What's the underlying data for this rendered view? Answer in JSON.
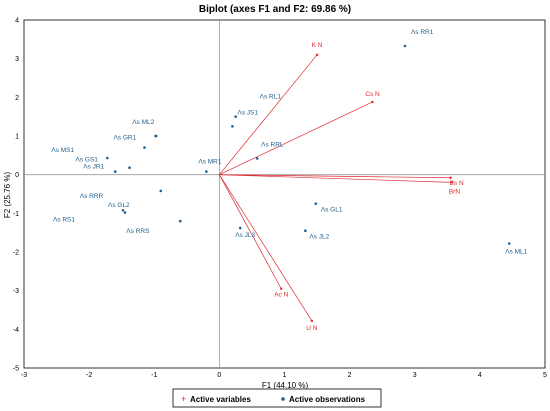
{
  "chart_data": {
    "type": "scatter",
    "title": "Biplot (axes F1 and F2: 69.86 %)",
    "xlabel": "F1 (44.10 %)",
    "ylabel": "F2 (25.76 %)",
    "xlim": [
      -3,
      5
    ],
    "ylim": [
      -5,
      4
    ],
    "x_ticks": [
      "-3",
      "-2",
      "-1",
      "0",
      "1",
      "2",
      "3",
      "4",
      "5"
    ],
    "y_ticks": [
      "-5",
      "-4",
      "-3",
      "-2",
      "-1",
      "0",
      "1",
      "2",
      "3",
      "4"
    ],
    "grid": false,
    "legend_position": "bottom",
    "legend": {
      "variables": "Active variables",
      "observations": "Active observations"
    },
    "colors": {
      "variables": "#e0282e",
      "observations": "#1f5f8b",
      "axes": "#9a9a9a"
    },
    "variables": [
      {
        "label": "K N",
        "x": 1.5,
        "y": 3.1
      },
      {
        "label": "Cs N",
        "x": 2.35,
        "y": 1.88
      },
      {
        "label": "Bs N",
        "x": 3.55,
        "y": -0.08
      },
      {
        "label": "BrN",
        "x": 3.57,
        "y": -0.2
      },
      {
        "label": "Ac N",
        "x": 0.95,
        "y": -2.95
      },
      {
        "label": "U N",
        "x": 1.42,
        "y": -3.78
      }
    ],
    "observations": [
      {
        "label": "Λs RR1",
        "x": 2.85,
        "y": 3.33
      },
      {
        "label": "Λs RL1",
        "x": 0.25,
        "y": 1.5
      },
      {
        "label": "Λs JS1",
        "x": 0.2,
        "y": 1.25
      },
      {
        "label": "Λs RRL",
        "x": 0.58,
        "y": 0.42
      },
      {
        "label": "Λs ML2",
        "x": -0.97,
        "y": 1.0
      },
      {
        "label": "Λs GR1",
        "x": -1.15,
        "y": 0.7
      },
      {
        "label": "Λs MS1",
        "x": -1.72,
        "y": 0.43
      },
      {
        "label": "Λs JR1",
        "x": -1.6,
        "y": 0.08
      },
      {
        "label": "Λs GS1",
        "x": -1.38,
        "y": 0.18
      },
      {
        "label": "Λs MR1",
        "x": -0.2,
        "y": 0.08
      },
      {
        "label": "Λs GL1",
        "x": 1.48,
        "y": -0.75
      },
      {
        "label": "Λs JL2",
        "x": 1.32,
        "y": -1.45
      },
      {
        "label": "Λs JL3",
        "x": 0.32,
        "y": -1.38
      },
      {
        "label": "Λs ML1",
        "x": 4.45,
        "y": -1.78
      },
      {
        "label": "Λs GL2",
        "x": -1.48,
        "y": -0.92
      },
      {
        "label": "Λs RRR",
        "x": -0.9,
        "y": -0.42
      },
      {
        "label": "Λs RS1",
        "x": -1.45,
        "y": -0.98
      },
      {
        "label": "Λs RRS",
        "x": -0.6,
        "y": -1.2
      }
    ],
    "extra_points": [
      {
        "x": -0.98,
        "y": 1.0
      }
    ]
  }
}
